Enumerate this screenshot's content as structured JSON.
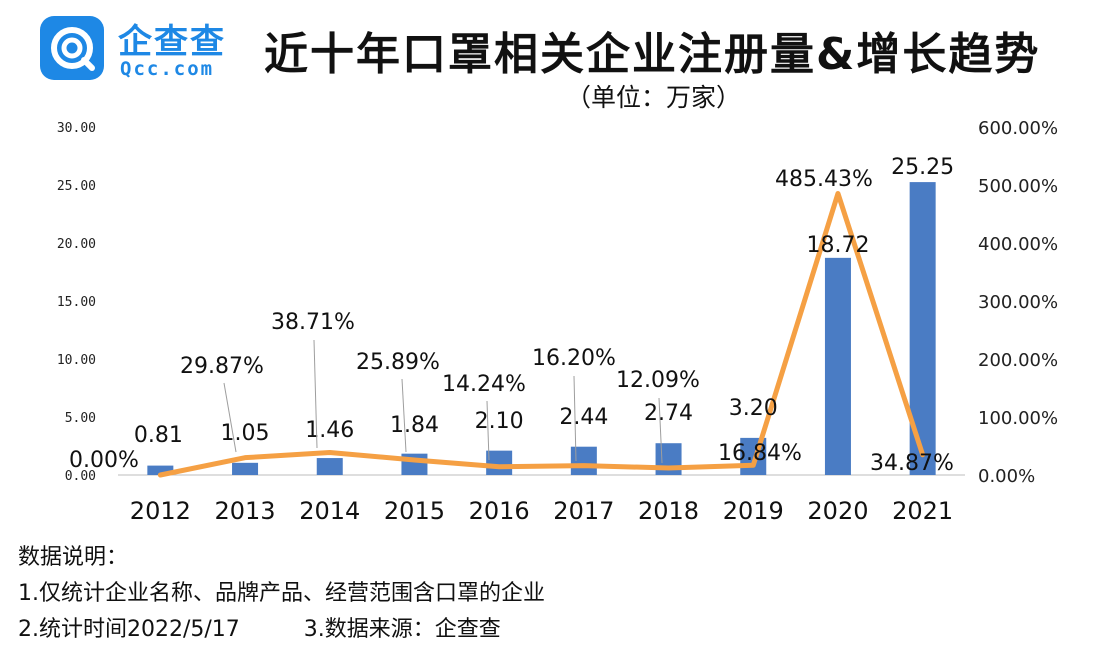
{
  "logo": {
    "name": "企查查",
    "domain": "Qcc.com"
  },
  "title": "近十年口罩相关企业注册量&增长趋势",
  "unit": "（单位：万家）",
  "colors": {
    "bar": "#4a7cc4",
    "line": "#f5a044",
    "brand": "#1e88e5"
  },
  "chart_data": {
    "type": "bar",
    "categories": [
      "2012",
      "2013",
      "2014",
      "2015",
      "2016",
      "2017",
      "2018",
      "2019",
      "2020",
      "2021"
    ],
    "series": [
      {
        "axis": "left",
        "type": "bar",
        "values": [
          0.81,
          1.05,
          1.46,
          1.84,
          2.1,
          2.44,
          2.74,
          3.2,
          18.72,
          25.25
        ],
        "labels": [
          "0.81",
          "1.05",
          "1.46",
          "1.84",
          "2.10",
          "2.44",
          "2.74",
          "3.20",
          "18.72",
          "25.25"
        ]
      },
      {
        "axis": "right",
        "type": "line",
        "values": [
          0.0,
          29.87,
          38.71,
          25.89,
          14.24,
          16.2,
          12.09,
          16.84,
          485.43,
          34.87
        ],
        "labels": [
          "0.00%",
          "29.87%",
          "38.71%",
          "25.89%",
          "14.24%",
          "16.20%",
          "12.09%",
          "16.84%",
          "485.43%",
          "34.87%"
        ]
      }
    ],
    "y_left": {
      "ylim": [
        0,
        30
      ],
      "ticks": [
        "0.00",
        "5.00",
        "10.00",
        "15.00",
        "20.00",
        "25.00",
        "30.00"
      ]
    },
    "y_right": {
      "ylim": [
        0,
        600
      ],
      "ticks": [
        "0.00%",
        "100.00%",
        "200.00%",
        "300.00%",
        "400.00%",
        "500.00%",
        "600.00%"
      ]
    },
    "grid": false,
    "legend": "none"
  },
  "notes": {
    "heading": "数据说明：",
    "line1": "1.仅统计企业名称、品牌产品、经营范围含口罩的企业",
    "line2": "2.统计时间2022/5/17",
    "line3": "3.数据来源：企查查"
  }
}
